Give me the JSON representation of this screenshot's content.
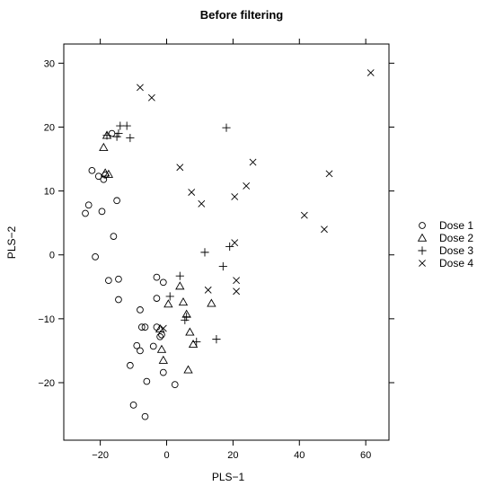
{
  "chart_data": {
    "type": "scatter",
    "title": "Before filtering",
    "xlabel": "PLS−1",
    "ylabel": "PLS−2",
    "xlim": [
      -31,
      67
    ],
    "ylim": [
      -29,
      33
    ],
    "xticks": [
      -20,
      0,
      20,
      40,
      60
    ],
    "yticks": [
      -20,
      -10,
      0,
      10,
      20,
      30
    ],
    "xtick_labels": [
      "−20",
      "0",
      "20",
      "40",
      "60"
    ],
    "ytick_labels": [
      "−20",
      "−10",
      "0",
      "10",
      "20",
      "30"
    ],
    "grid": false,
    "legend_position": "right",
    "series": [
      {
        "name": "Dose 1",
        "marker": "circle",
        "points": [
          [
            -24.5,
            6.5
          ],
          [
            -23.5,
            7.8
          ],
          [
            -22.5,
            13.2
          ],
          [
            -21.5,
            -0.3
          ],
          [
            -20.5,
            12.3
          ],
          [
            -19.5,
            6.8
          ],
          [
            -19,
            11.8
          ],
          [
            -18.5,
            12.5
          ],
          [
            -17.5,
            -4.0
          ],
          [
            -16,
            2.9
          ],
          [
            -15,
            8.5
          ],
          [
            -14.5,
            -3.8
          ],
          [
            -14.5,
            -7.0
          ],
          [
            -16.5,
            19.0
          ],
          [
            -8,
            -8.6
          ],
          [
            -7.5,
            -11.3
          ],
          [
            -6.5,
            -11.3
          ],
          [
            -3,
            -11.3
          ],
          [
            -3,
            -3.5
          ],
          [
            -3,
            -6.8
          ],
          [
            -1.5,
            -12.5
          ],
          [
            -1,
            -4.3
          ],
          [
            -2,
            -12.8
          ],
          [
            -9,
            -14.2
          ],
          [
            -8,
            -15.0
          ],
          [
            -4,
            -14.3
          ],
          [
            -1,
            -18.4
          ],
          [
            2.5,
            -20.3
          ],
          [
            -6,
            -19.8
          ],
          [
            -11,
            -17.3
          ],
          [
            -10,
            -23.5
          ],
          [
            -6.5,
            -25.3
          ]
        ]
      },
      {
        "name": "Dose 2",
        "marker": "triangle",
        "points": [
          [
            -19,
            16.8
          ],
          [
            -18,
            18.7
          ],
          [
            -17.5,
            12.6
          ],
          [
            -18.5,
            12.8
          ],
          [
            -2,
            -11.6
          ],
          [
            -1.5,
            -14.8
          ],
          [
            -1,
            -16.5
          ],
          [
            0.5,
            -7.7
          ],
          [
            4,
            -4.9
          ],
          [
            5,
            -7.4
          ],
          [
            6,
            -9.3
          ],
          [
            7,
            -12.1
          ],
          [
            8,
            -14.0
          ],
          [
            6.5,
            -18.0
          ],
          [
            13.5,
            -7.6
          ]
        ]
      },
      {
        "name": "Dose 3",
        "marker": "plus",
        "points": [
          [
            -18,
            18.7
          ],
          [
            -15,
            18.5
          ],
          [
            -14,
            20.2
          ],
          [
            -12,
            20.2
          ],
          [
            -11,
            18.3
          ],
          [
            -14.5,
            19.0
          ],
          [
            1,
            -6.5
          ],
          [
            4,
            -3.3
          ],
          [
            5.5,
            -10.2
          ],
          [
            6,
            -9.7
          ],
          [
            9,
            -13.6
          ],
          [
            11.5,
            0.4
          ],
          [
            15,
            -13.2
          ],
          [
            17,
            -1.8
          ],
          [
            18,
            19.9
          ],
          [
            19,
            1.3
          ]
        ]
      },
      {
        "name": "Dose 4",
        "marker": "cross",
        "points": [
          [
            -8,
            26.2
          ],
          [
            -4.5,
            24.6
          ],
          [
            4,
            13.7
          ],
          [
            7.5,
            9.8
          ],
          [
            10.5,
            8.0
          ],
          [
            -1,
            -11.5
          ],
          [
            12.5,
            -5.5
          ],
          [
            20.5,
            9.1
          ],
          [
            24,
            10.8
          ],
          [
            26,
            14.5
          ],
          [
            20.5,
            1.9
          ],
          [
            21,
            -4.0
          ],
          [
            21,
            -5.7
          ],
          [
            41.5,
            6.2
          ],
          [
            47.5,
            4.0
          ],
          [
            49,
            12.7
          ],
          [
            61.5,
            28.5
          ]
        ]
      }
    ]
  }
}
